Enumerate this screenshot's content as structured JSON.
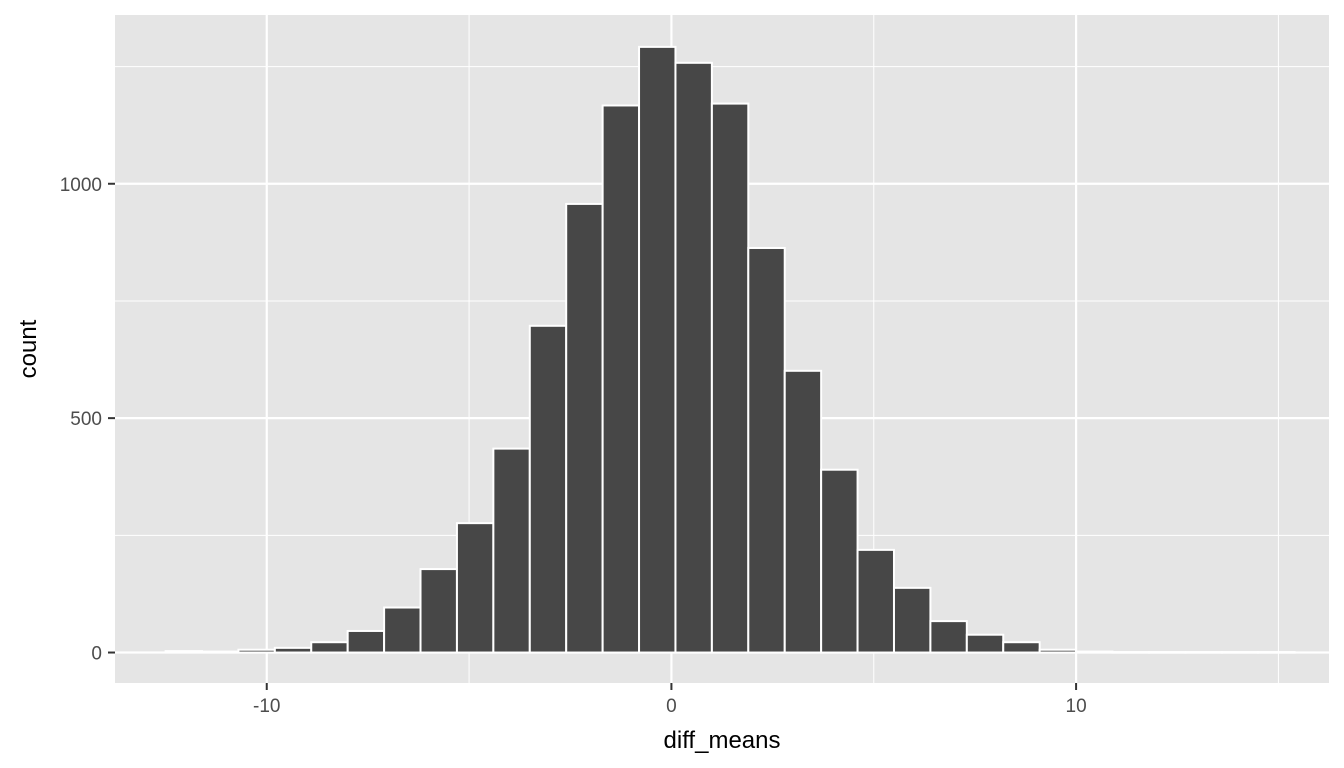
{
  "chart_data": {
    "type": "histogram",
    "xlabel": "diff_means",
    "ylabel": "count",
    "xlim": [
      -13.75,
      16.25
    ],
    "ylim": [
      -65,
      1360
    ],
    "x_breaks": [
      -10,
      0,
      10
    ],
    "x_minor_breaks": [
      -15,
      -5,
      5,
      15
    ],
    "y_breaks": [
      0,
      500,
      1000
    ],
    "y_minor_breaks": [
      250,
      750,
      1250
    ],
    "bins": [
      {
        "x0": -12.5,
        "x1": -11.6,
        "count": 3
      },
      {
        "x0": -11.6,
        "x1": -10.7,
        "count": 2
      },
      {
        "x0": -10.7,
        "x1": -9.8,
        "count": 6
      },
      {
        "x0": -9.8,
        "x1": -8.9,
        "count": 10
      },
      {
        "x0": -8.9,
        "x1": -8.0,
        "count": 22
      },
      {
        "x0": -8.0,
        "x1": -7.1,
        "count": 46
      },
      {
        "x0": -7.1,
        "x1": -6.2,
        "count": 96
      },
      {
        "x0": -6.2,
        "x1": -5.3,
        "count": 178
      },
      {
        "x0": -5.3,
        "x1": -4.4,
        "count": 276
      },
      {
        "x0": -4.4,
        "x1": -3.5,
        "count": 435
      },
      {
        "x0": -3.5,
        "x1": -2.6,
        "count": 697
      },
      {
        "x0": -2.6,
        "x1": -1.7,
        "count": 957
      },
      {
        "x0": -1.7,
        "x1": -0.8,
        "count": 1167
      },
      {
        "x0": -0.8,
        "x1": 0.1,
        "count": 1292
      },
      {
        "x0": 0.1,
        "x1": 1.0,
        "count": 1258
      },
      {
        "x0": 1.0,
        "x1": 1.9,
        "count": 1171
      },
      {
        "x0": 1.9,
        "x1": 2.8,
        "count": 863
      },
      {
        "x0": 2.8,
        "x1": 3.7,
        "count": 601
      },
      {
        "x0": 3.7,
        "x1": 4.6,
        "count": 390
      },
      {
        "x0": 4.6,
        "x1": 5.5,
        "count": 219
      },
      {
        "x0": 5.5,
        "x1": 6.4,
        "count": 138
      },
      {
        "x0": 6.4,
        "x1": 7.3,
        "count": 67
      },
      {
        "x0": 7.3,
        "x1": 8.2,
        "count": 38
      },
      {
        "x0": 8.2,
        "x1": 9.1,
        "count": 22
      },
      {
        "x0": 9.1,
        "x1": 10.0,
        "count": 6
      },
      {
        "x0": 10.0,
        "x1": 10.9,
        "count": 2
      },
      {
        "x0": 10.9,
        "x1": 11.8,
        "count": 1
      },
      {
        "x0": 11.8,
        "x1": 12.7,
        "count": 1
      },
      {
        "x0": 12.7,
        "x1": 13.6,
        "count": 1
      },
      {
        "x0": 13.6,
        "x1": 14.5,
        "count": 1
      },
      {
        "x0": 14.5,
        "x1": 15.4,
        "count": 1
      }
    ],
    "colors": {
      "panel": "#e5e5e5",
      "grid": "#ffffff",
      "bar_fill": "#474747",
      "bar_stroke": "#ffffff",
      "tick_text": "#4d4d4d",
      "tick_mark": "#333333"
    }
  }
}
